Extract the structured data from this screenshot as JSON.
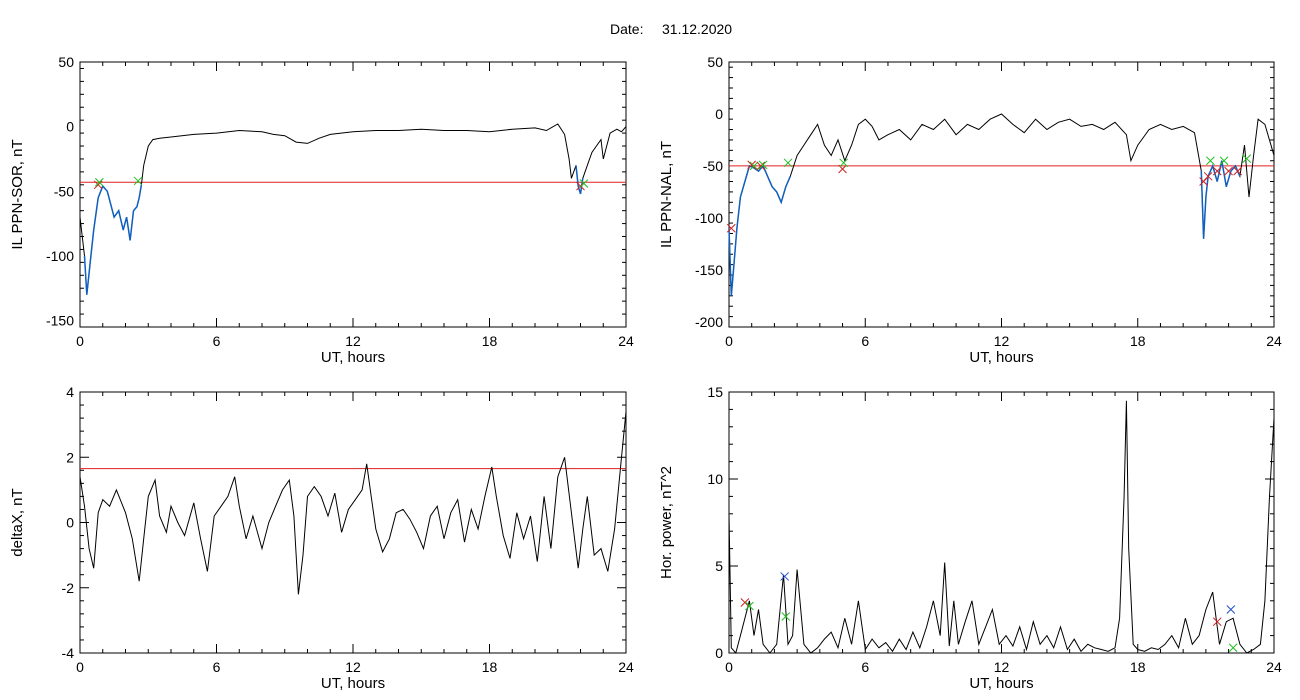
{
  "header": {
    "date_label": "Date:",
    "date_value": "31.12.2020"
  },
  "colors": {
    "trace": "#000000",
    "selected": "#1060c0",
    "threshold": "#e02020",
    "marker_red": "#d02020",
    "marker_green": "#20c020",
    "marker_blue": "#2050d0"
  },
  "chart_data": [
    {
      "id": "sor",
      "type": "line",
      "title": "",
      "xlabel": "UT, hours",
      "ylabel": "IL PPN-SOR, nT",
      "xlim": [
        0,
        24
      ],
      "ylim": [
        -155,
        50
      ],
      "xticks": [
        0,
        6,
        12,
        18,
        24
      ],
      "yticks": [
        50,
        0,
        -50,
        -100,
        -150
      ],
      "threshold": -43,
      "series": [
        {
          "x": [
            0,
            0.2,
            0.3,
            0.45,
            0.6,
            0.8,
            1.0,
            1.2,
            1.35,
            1.5,
            1.7,
            1.9,
            2.05,
            2.2,
            2.35,
            2.5,
            2.6,
            2.7,
            2.8,
            3.0,
            3.2,
            3.5,
            4.0,
            5,
            6,
            7,
            8,
            8.5,
            9,
            9.5,
            10,
            10.5,
            11,
            12,
            13,
            14,
            15,
            16,
            17,
            18,
            19,
            20,
            20.5,
            21,
            21.3,
            21.5,
            21.6,
            21.8,
            21.9,
            22.0,
            22.1,
            22.3,
            22.5,
            22.7,
            22.9,
            23.0,
            23.3,
            23.6,
            23.8,
            24
          ],
          "y": [
            -70,
            -100,
            -130,
            -105,
            -80,
            -55,
            -46,
            -50,
            -60,
            -70,
            -65,
            -80,
            -70,
            -88,
            -65,
            -62,
            -55,
            -45,
            -30,
            -15,
            -10,
            -9,
            -8,
            -6,
            -5,
            -3,
            -4,
            -6,
            -7,
            -12,
            -13,
            -9,
            -6,
            -4,
            -3,
            -3,
            -2,
            -3,
            -3,
            -4,
            -2,
            -1,
            -3,
            2,
            -6,
            -25,
            -40,
            -30,
            -46,
            -52,
            -40,
            -30,
            -20,
            -15,
            -10,
            -25,
            -5,
            -2,
            -4,
            0
          ]
        }
      ],
      "selected_segments": [
        [
          0.2,
          2.7
        ],
        [
          21.8,
          22.1
        ]
      ],
      "markers": [
        {
          "x": 0.8,
          "y": -45,
          "color": "red"
        },
        {
          "x": 0.85,
          "y": -43,
          "color": "green"
        },
        {
          "x": 2.55,
          "y": -42,
          "color": "green"
        },
        {
          "x": 22.0,
          "y": -46,
          "color": "red"
        },
        {
          "x": 22.15,
          "y": -44,
          "color": "green"
        }
      ]
    },
    {
      "id": "nal",
      "type": "line",
      "title": "",
      "xlabel": "UT, hours",
      "ylabel": "IL PPN-NAL, nT",
      "xlim": [
        0,
        24
      ],
      "ylim": [
        -205,
        50
      ],
      "xticks": [
        0,
        6,
        12,
        18,
        24
      ],
      "yticks": [
        50,
        0,
        -50,
        -100,
        -150,
        -200
      ],
      "threshold": -50,
      "series": [
        {
          "x": [
            0,
            0.1,
            0.2,
            0.35,
            0.5,
            0.7,
            0.9,
            1.1,
            1.3,
            1.5,
            1.7,
            1.9,
            2.1,
            2.3,
            2.5,
            2.7,
            3.0,
            3.3,
            3.6,
            3.9,
            4.2,
            4.5,
            4.8,
            5.1,
            5.4,
            5.7,
            6,
            6.3,
            6.6,
            7,
            7.5,
            8,
            8.5,
            9,
            9.5,
            10,
            10.5,
            11,
            11.5,
            12,
            12.5,
            13,
            13.5,
            14,
            14.5,
            15,
            15.5,
            16,
            16.5,
            17,
            17.5,
            17.7,
            18,
            18.5,
            19,
            19.5,
            20,
            20.5,
            20.8,
            20.9,
            21.0,
            21.1,
            21.3,
            21.5,
            21.7,
            21.9,
            22.1,
            22.3,
            22.5,
            22.7,
            22.9,
            23.1,
            23.3,
            23.6,
            24
          ],
          "y": [
            -110,
            -175,
            -150,
            -110,
            -80,
            -65,
            -50,
            -52,
            -55,
            -50,
            -60,
            -70,
            -75,
            -85,
            -70,
            -60,
            -40,
            -30,
            -20,
            -10,
            -30,
            -40,
            -25,
            -45,
            -30,
            -10,
            -5,
            -12,
            -25,
            -20,
            -15,
            -25,
            -10,
            -15,
            -5,
            -20,
            -10,
            -15,
            -5,
            0,
            -10,
            -18,
            -5,
            -15,
            -8,
            -5,
            -12,
            -10,
            -15,
            -8,
            -20,
            -45,
            -30,
            -15,
            -10,
            -15,
            -12,
            -18,
            -55,
            -120,
            -80,
            -60,
            -50,
            -65,
            -45,
            -70,
            -55,
            -50,
            -60,
            -30,
            -80,
            -40,
            -5,
            -10,
            -40
          ]
        }
      ],
      "selected_segments": [
        [
          0,
          2.7
        ],
        [
          20.8,
          22.5
        ]
      ],
      "markers": [
        {
          "x": 0.1,
          "y": -110,
          "color": "red"
        },
        {
          "x": 1.0,
          "y": -49,
          "color": "red"
        },
        {
          "x": 1.1,
          "y": -50,
          "color": "green"
        },
        {
          "x": 1.4,
          "y": -50,
          "color": "red"
        },
        {
          "x": 1.5,
          "y": -49,
          "color": "green"
        },
        {
          "x": 2.6,
          "y": -47,
          "color": "green"
        },
        {
          "x": 5.0,
          "y": -53,
          "color": "red"
        },
        {
          "x": 5.05,
          "y": -47,
          "color": "green"
        },
        {
          "x": 20.9,
          "y": -65,
          "color": "red"
        },
        {
          "x": 21.1,
          "y": -60,
          "color": "red"
        },
        {
          "x": 21.2,
          "y": -45,
          "color": "green"
        },
        {
          "x": 21.5,
          "y": -55,
          "color": "red"
        },
        {
          "x": 21.8,
          "y": -45,
          "color": "green"
        },
        {
          "x": 22.0,
          "y": -55,
          "color": "red"
        },
        {
          "x": 22.4,
          "y": -55,
          "color": "red"
        },
        {
          "x": 22.8,
          "y": -43,
          "color": "green"
        }
      ]
    },
    {
      "id": "dx",
      "type": "line",
      "title": "",
      "xlabel": "UT, hours",
      "ylabel": "deltaX, nT",
      "xlim": [
        0,
        24
      ],
      "ylim": [
        -4,
        4
      ],
      "xticks": [
        0,
        6,
        12,
        18,
        24
      ],
      "yticks": [
        4,
        2,
        0,
        -2,
        -4
      ],
      "threshold": 1.65,
      "series": [
        {
          "x": [
            0,
            0.2,
            0.4,
            0.6,
            0.8,
            1.0,
            1.3,
            1.6,
            2.0,
            2.3,
            2.6,
            2.8,
            3.0,
            3.3,
            3.5,
            3.8,
            4.0,
            4.3,
            4.6,
            5.0,
            5.3,
            5.6,
            5.9,
            6.2,
            6.5,
            6.8,
            7.0,
            7.3,
            7.6,
            8.0,
            8.3,
            8.6,
            8.9,
            9.2,
            9.4,
            9.6,
            9.8,
            10.0,
            10.3,
            10.6,
            10.9,
            11.2,
            11.5,
            11.8,
            12.1,
            12.4,
            12.6,
            12.8,
            13.0,
            13.3,
            13.6,
            13.9,
            14.2,
            14.5,
            14.8,
            15.1,
            15.4,
            15.7,
            16.0,
            16.3,
            16.6,
            16.9,
            17.2,
            17.5,
            17.8,
            18.1,
            18.3,
            18.6,
            18.9,
            19.2,
            19.5,
            19.8,
            20.1,
            20.4,
            20.7,
            21.0,
            21.3,
            21.6,
            21.9,
            22.1,
            22.3,
            22.6,
            22.9,
            23.2,
            23.5,
            23.8,
            24
          ],
          "y": [
            1.4,
            0.5,
            -0.8,
            -1.4,
            0.3,
            0.7,
            0.5,
            1.0,
            0.3,
            -0.5,
            -1.8,
            -0.5,
            0.8,
            1.3,
            0.2,
            -0.3,
            0.5,
            0,
            -0.4,
            0.6,
            -0.5,
            -1.5,
            0.2,
            0.5,
            0.8,
            1.4,
            0.5,
            -0.5,
            0.2,
            -0.8,
            0,
            0.5,
            1.0,
            1.3,
            0.2,
            -2.2,
            -1.0,
            0.8,
            1.1,
            0.8,
            0.2,
            0.9,
            -0.3,
            0.4,
            0.7,
            1.0,
            1.8,
            0.8,
            -0.2,
            -0.9,
            -0.5,
            0.3,
            0.4,
            0.1,
            -0.3,
            -0.8,
            0.2,
            0.5,
            -0.5,
            0.3,
            0.7,
            -0.6,
            0.4,
            -0.2,
            0.8,
            1.7,
            0.8,
            -0.4,
            -1.1,
            0.3,
            -0.5,
            0.2,
            -1.2,
            0.8,
            -0.8,
            1.4,
            2.0,
            0.3,
            -1.4,
            -0.2,
            0.8,
            -1.0,
            -0.8,
            -1.5,
            -0.2,
            2.0,
            3.4
          ]
        }
      ],
      "selected_segments": [],
      "markers": []
    },
    {
      "id": "pw",
      "type": "line",
      "title": "",
      "xlabel": "UT, hours",
      "ylabel": "Hor. power, nT^2",
      "xlim": [
        0,
        24
      ],
      "ylim": [
        0,
        15
      ],
      "xticks": [
        0,
        6,
        12,
        18,
        24
      ],
      "yticks": [
        15,
        10,
        5,
        0
      ],
      "threshold": null,
      "series": [
        {
          "x": [
            0,
            0.1,
            0.3,
            0.5,
            0.7,
            0.9,
            1.1,
            1.3,
            1.5,
            1.8,
            2.1,
            2.4,
            2.6,
            2.8,
            3.0,
            3.3,
            3.6,
            3.9,
            4.2,
            4.5,
            4.8,
            5.1,
            5.4,
            5.7,
            6.0,
            6.3,
            6.6,
            6.9,
            7.2,
            7.5,
            7.8,
            8.1,
            8.4,
            8.7,
            9.0,
            9.3,
            9.5,
            9.7,
            9.9,
            10.1,
            10.4,
            10.7,
            11.0,
            11.3,
            11.6,
            11.9,
            12.2,
            12.5,
            12.8,
            13.1,
            13.4,
            13.7,
            14.0,
            14.3,
            14.6,
            14.9,
            15.2,
            15.5,
            15.8,
            16.1,
            16.4,
            16.7,
            17.0,
            17.2,
            17.4,
            17.5,
            17.6,
            17.8,
            18.0,
            18.3,
            18.6,
            18.9,
            19.2,
            19.5,
            19.8,
            20.1,
            20.4,
            20.7,
            21.0,
            21.3,
            21.6,
            21.9,
            22.2,
            22.5,
            22.8,
            23.1,
            23.4,
            23.6,
            23.8,
            24
          ],
          "y": [
            8,
            0.3,
            0,
            1,
            2,
            3,
            1,
            2.5,
            0.5,
            0,
            0.5,
            4.5,
            0.5,
            1,
            4.8,
            0.5,
            0,
            0.3,
            0.8,
            1.2,
            0.3,
            2,
            0.5,
            3,
            0.2,
            0.8,
            0.3,
            0.6,
            0.1,
            0.8,
            0.2,
            1.2,
            0.3,
            1.5,
            3,
            1,
            5.2,
            0.4,
            3,
            0.5,
            1.8,
            3,
            0.5,
            1.5,
            2.5,
            0.5,
            1,
            0.4,
            1.5,
            0.2,
            1.8,
            0.5,
            1,
            0.3,
            1.5,
            0.2,
            0.8,
            0.1,
            0.5,
            0.3,
            0.2,
            0.1,
            0.3,
            2,
            9,
            14.5,
            6,
            0.5,
            0.2,
            0.1,
            0.3,
            0.2,
            0.5,
            1,
            0.3,
            2,
            0.5,
            1,
            2.5,
            3.5,
            0.5,
            1.8,
            2,
            0.5,
            0,
            0.2,
            0.5,
            3,
            9,
            13.5
          ]
        }
      ],
      "selected_segments": [],
      "markers": [
        {
          "x": 0.7,
          "y": 2.9,
          "color": "red"
        },
        {
          "x": 0.9,
          "y": 2.7,
          "color": "green"
        },
        {
          "x": 2.45,
          "y": 4.4,
          "color": "blue"
        },
        {
          "x": 2.5,
          "y": 2.1,
          "color": "green"
        },
        {
          "x": 21.5,
          "y": 1.8,
          "color": "red"
        },
        {
          "x": 22.1,
          "y": 2.5,
          "color": "blue"
        },
        {
          "x": 22.2,
          "y": 0.3,
          "color": "green"
        }
      ]
    }
  ]
}
